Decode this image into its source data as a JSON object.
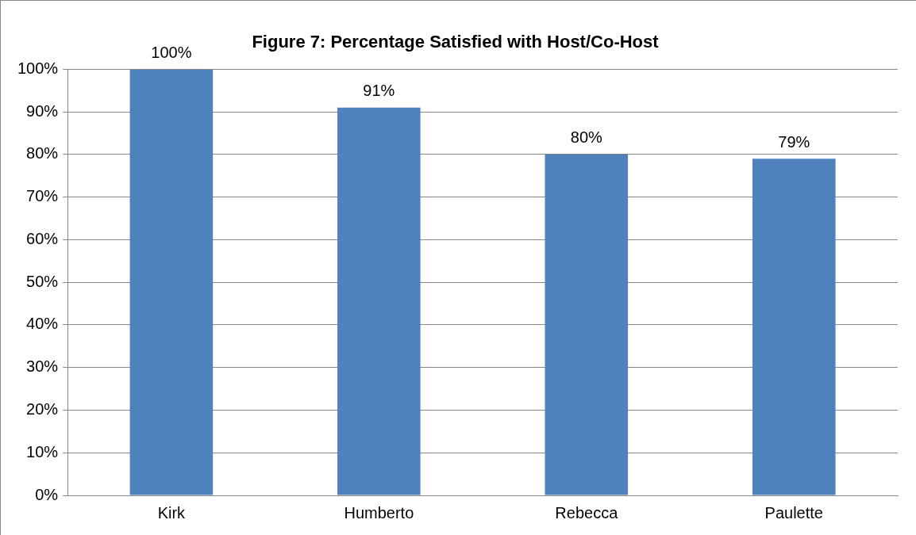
{
  "chart_data": {
    "type": "bar",
    "title": "Figure 7: Percentage Satisfied with Host/Co-Host",
    "categories": [
      "Kirk",
      "Humberto",
      "Rebecca",
      "Paulette"
    ],
    "values": [
      100,
      91,
      80,
      79
    ],
    "value_labels": [
      "100%",
      "91%",
      "80%",
      "79%"
    ],
    "color": "#4f81bd",
    "ylim": [
      0,
      100
    ],
    "yticks": [
      {
        "value": 0,
        "label": "0%"
      },
      {
        "value": 10,
        "label": "10%"
      },
      {
        "value": 20,
        "label": "20%"
      },
      {
        "value": 30,
        "label": "30%"
      },
      {
        "value": 40,
        "label": "40%"
      },
      {
        "value": 50,
        "label": "50%"
      },
      {
        "value": 60,
        "label": "60%"
      },
      {
        "value": 70,
        "label": "70%"
      },
      {
        "value": 80,
        "label": "80%"
      },
      {
        "value": 90,
        "label": "90%"
      },
      {
        "value": 100,
        "label": "100%"
      }
    ],
    "grid": "y"
  }
}
